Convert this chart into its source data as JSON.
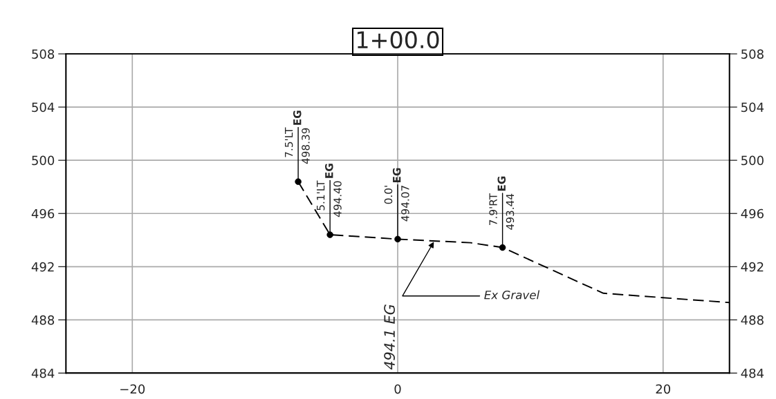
{
  "chart_data": {
    "type": "line",
    "title": "1+00.0",
    "series": [
      {
        "color": "#000000",
        "line_style": "dashed",
        "marker": "none",
        "x": [
          -7.5,
          -5.1,
          0,
          5.5,
          7.9,
          15.5,
          25
        ],
        "values": [
          498.39,
          494.4,
          494.07,
          493.8,
          493.44,
          490.0,
          489.3
        ]
      },
      {
        "type": "scatter",
        "color": "#000000",
        "marker": "circle",
        "x": [
          -7.5,
          -5.1,
          0,
          7.9
        ],
        "values": [
          498.39,
          494.4,
          494.07,
          493.44
        ]
      }
    ],
    "xlim": [
      -25,
      25
    ],
    "xticks": [
      {
        "value": -20,
        "label": "−20"
      },
      0,
      20
    ],
    "ylim": [
      484,
      508
    ],
    "yticks": [
      484,
      488,
      492,
      496,
      500,
      504,
      508
    ],
    "y2lim": [
      484,
      508
    ],
    "y2ticks": [
      484,
      488,
      492,
      496,
      500,
      504,
      508
    ],
    "grid": true,
    "annotations": [
      {
        "text": "7.5'LT 498.39 EG",
        "x": -7.5,
        "y": 498.39
      },
      {
        "text": "5.1'LT 494.40 EG",
        "x": -5.1,
        "y": 494.4
      },
      {
        "text": "0.0' 494.07 EG",
        "x": 0,
        "y": 494.07
      },
      {
        "text": "7.9'RT 493.44 EG",
        "x": 7.9,
        "y": 493.44
      },
      {
        "text": "Ex Gravel",
        "x": 2.8,
        "y": 494.0
      },
      "494.1 EG"
    ]
  }
}
